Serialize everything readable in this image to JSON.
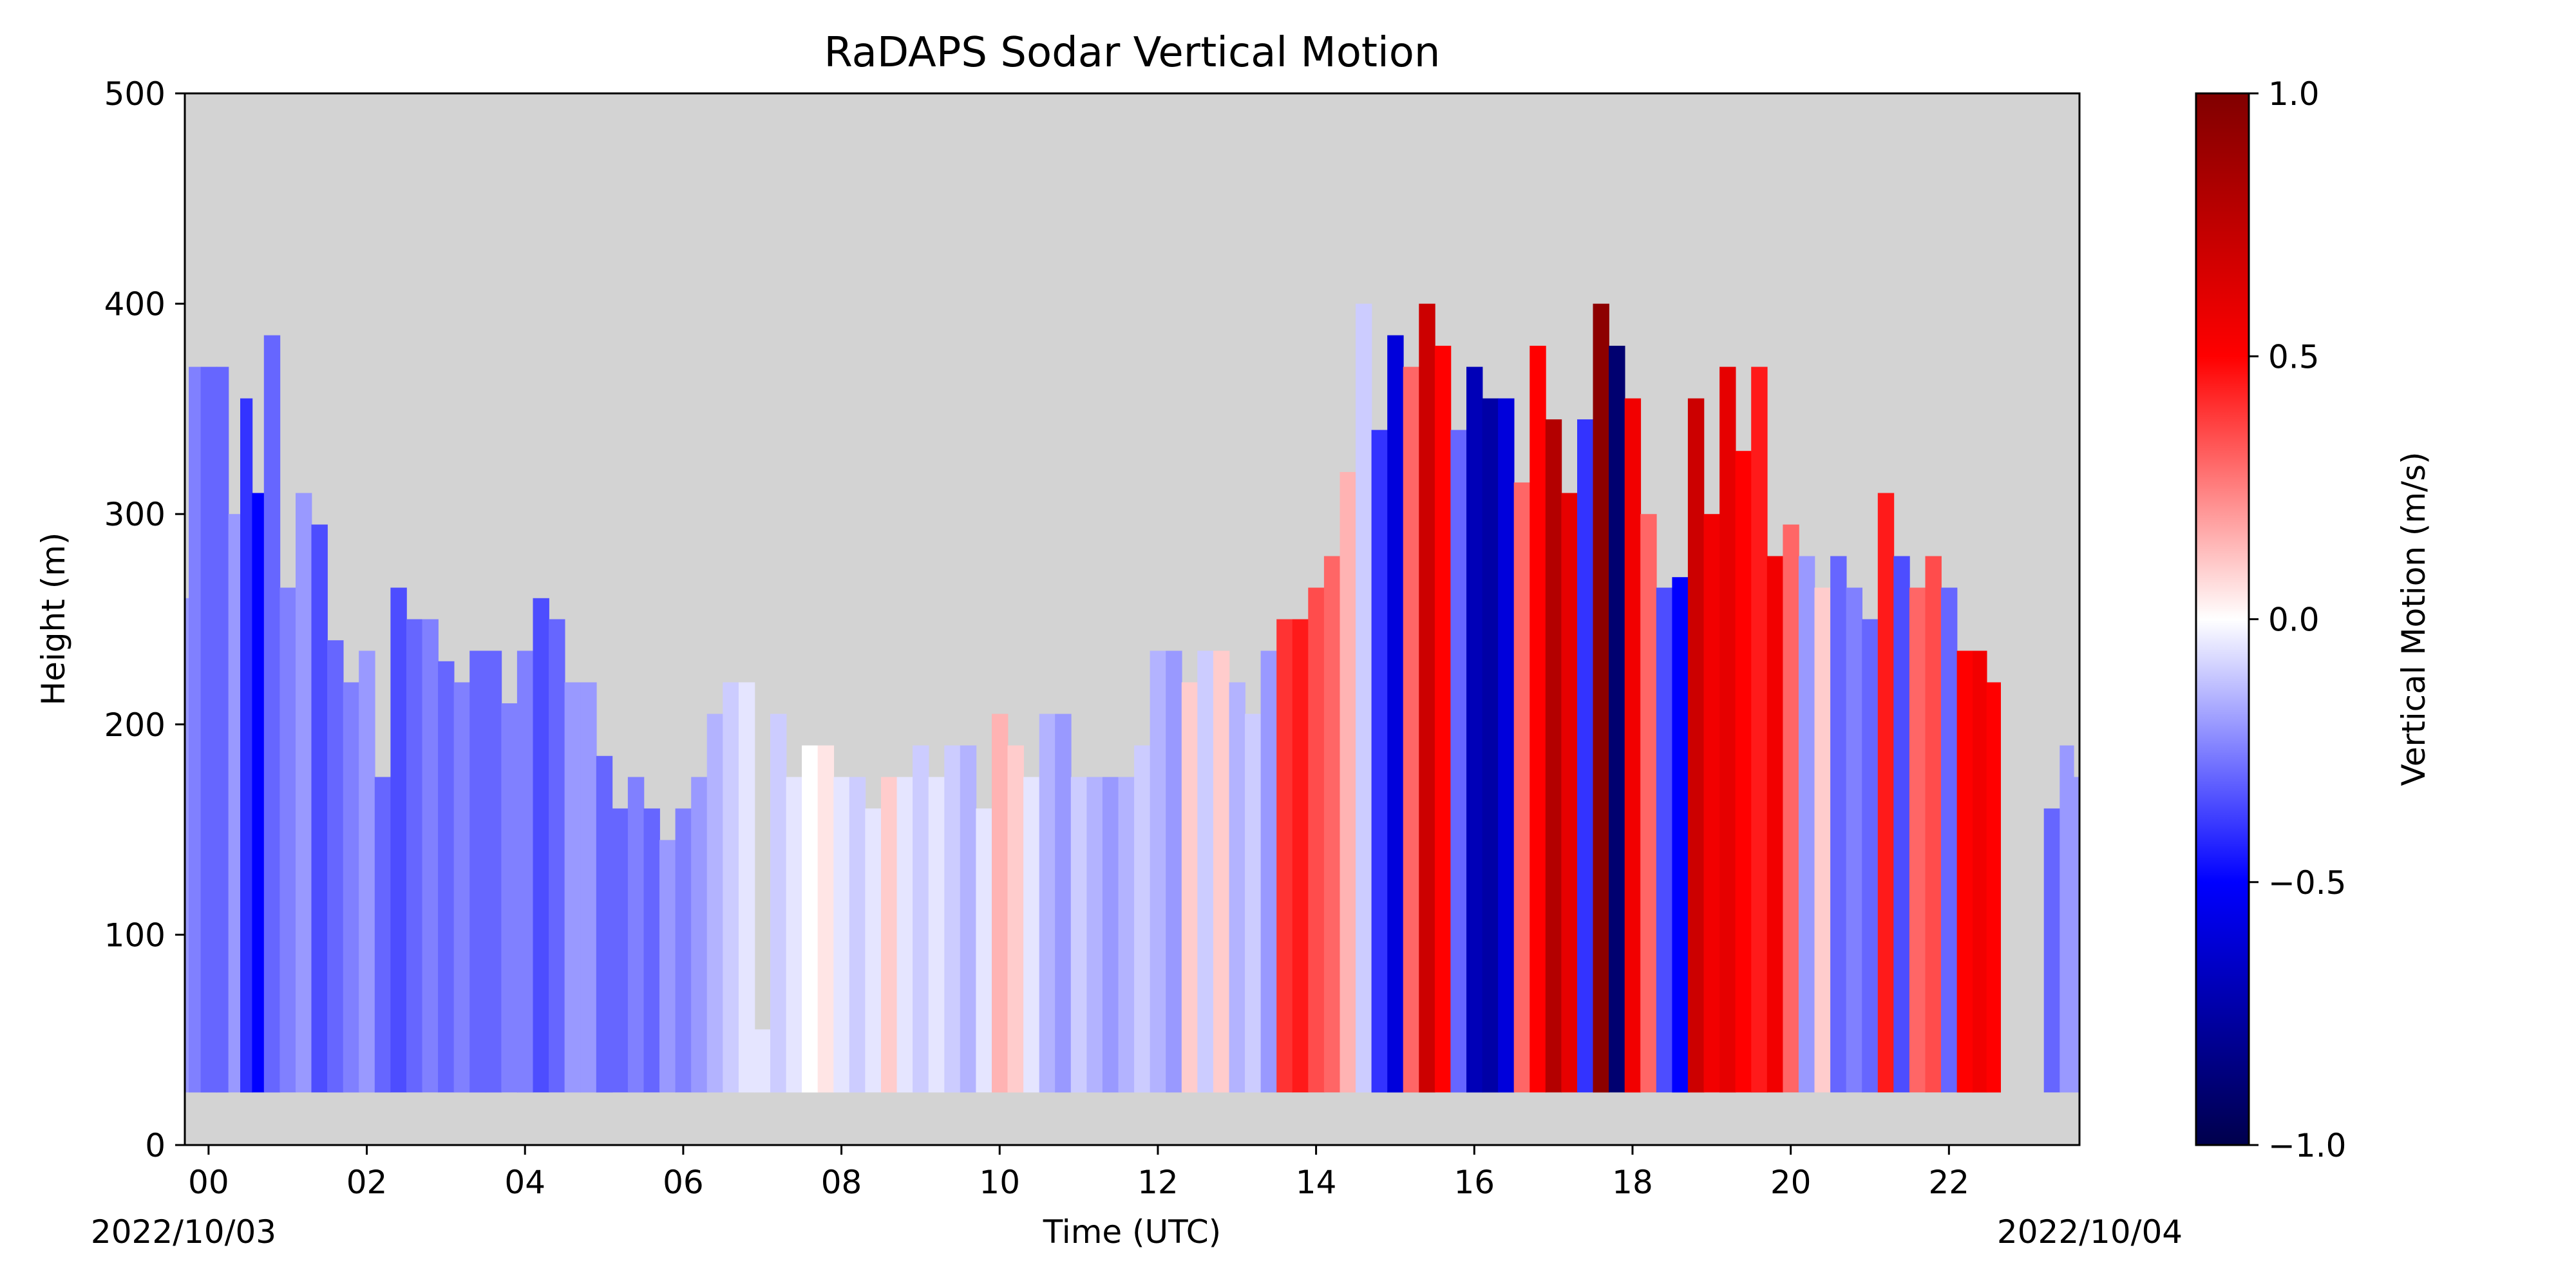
{
  "chart_data": {
    "type": "heatmap",
    "title": "RaDAPS Sodar Vertical Motion",
    "xlabel": "Time (UTC)",
    "ylabel": "Height (m)",
    "x_unit": "hour UTC",
    "xlim": [
      -0.3,
      23.65
    ],
    "ylim": [
      0,
      500
    ],
    "xticks": [
      0,
      2,
      4,
      6,
      8,
      10,
      12,
      14,
      16,
      18,
      20,
      22
    ],
    "xtick_labels": [
      "00",
      "02",
      "04",
      "06",
      "08",
      "10",
      "12",
      "14",
      "16",
      "18",
      "20",
      "22"
    ],
    "yticks": [
      0,
      100,
      200,
      300,
      400,
      500
    ],
    "ytick_labels": [
      "0",
      "100",
      "200",
      "300",
      "400",
      "500"
    ],
    "date_start": "2022/10/03",
    "date_end": "2022/10/04",
    "background_color": "#d3d3d3",
    "min_height": 25,
    "colorbar": {
      "label": "Vertical Motion (m/s)",
      "vmin": -1.0,
      "vmax": 1.0,
      "ticks": [
        1.0,
        0.5,
        0.0,
        -0.5,
        -1.0
      ],
      "tick_labels": [
        "1.0",
        "0.5",
        "0.0",
        "−0.5",
        "−1.0"
      ],
      "colormap": "seismic",
      "colormap_stops": [
        "#00004c",
        "#0000ff",
        "#ffffff",
        "#ff0000",
        "#800000"
      ]
    },
    "columns": [
      {
        "t": -0.3,
        "top": 260,
        "w": -0.2
      },
      {
        "t": -0.2,
        "top": 370,
        "w": -0.25
      },
      {
        "t": 0.0,
        "top": 370,
        "w": -0.3
      },
      {
        "t": 0.2,
        "top": 370,
        "w": -0.3
      },
      {
        "t": 0.3,
        "top": 300,
        "w": -0.2
      },
      {
        "t": 0.5,
        "top": 355,
        "w": -0.4
      },
      {
        "t": 0.6,
        "top": 310,
        "w": -0.5
      },
      {
        "t": 0.8,
        "top": 385,
        "w": -0.3
      },
      {
        "t": 1.0,
        "top": 265,
        "w": -0.25
      },
      {
        "t": 1.2,
        "top": 310,
        "w": -0.2
      },
      {
        "t": 1.4,
        "top": 295,
        "w": -0.35
      },
      {
        "t": 1.6,
        "top": 240,
        "w": -0.3
      },
      {
        "t": 1.8,
        "top": 220,
        "w": -0.25
      },
      {
        "t": 2.0,
        "top": 235,
        "w": -0.2
      },
      {
        "t": 2.2,
        "top": 175,
        "w": -0.3
      },
      {
        "t": 2.4,
        "top": 265,
        "w": -0.35
      },
      {
        "t": 2.6,
        "top": 250,
        "w": -0.3
      },
      {
        "t": 2.8,
        "top": 250,
        "w": -0.25
      },
      {
        "t": 3.0,
        "top": 230,
        "w": -0.3
      },
      {
        "t": 3.2,
        "top": 220,
        "w": -0.25
      },
      {
        "t": 3.4,
        "top": 235,
        "w": -0.3
      },
      {
        "t": 3.6,
        "top": 235,
        "w": -0.3
      },
      {
        "t": 3.8,
        "top": 210,
        "w": -0.25
      },
      {
        "t": 4.0,
        "top": 235,
        "w": -0.25
      },
      {
        "t": 4.2,
        "top": 260,
        "w": -0.35
      },
      {
        "t": 4.4,
        "top": 250,
        "w": -0.3
      },
      {
        "t": 4.6,
        "top": 220,
        "w": -0.2
      },
      {
        "t": 4.8,
        "top": 220,
        "w": -0.2
      },
      {
        "t": 5.0,
        "top": 185,
        "w": -0.3
      },
      {
        "t": 5.2,
        "top": 160,
        "w": -0.3
      },
      {
        "t": 5.4,
        "top": 175,
        "w": -0.25
      },
      {
        "t": 5.6,
        "top": 160,
        "w": -0.3
      },
      {
        "t": 5.8,
        "top": 145,
        "w": -0.2
      },
      {
        "t": 6.0,
        "top": 160,
        "w": -0.25
      },
      {
        "t": 6.2,
        "top": 175,
        "w": -0.2
      },
      {
        "t": 6.4,
        "top": 205,
        "w": -0.15
      },
      {
        "t": 6.6,
        "top": 220,
        "w": -0.1
      },
      {
        "t": 6.8,
        "top": 220,
        "w": -0.05
      },
      {
        "t": 7.0,
        "top": 55,
        "w": -0.05
      },
      {
        "t": 7.2,
        "top": 205,
        "w": -0.1
      },
      {
        "t": 7.4,
        "top": 175,
        "w": -0.05
      },
      {
        "t": 7.6,
        "top": 190,
        "w": 0.0
      },
      {
        "t": 7.8,
        "top": 190,
        "w": 0.05
      },
      {
        "t": 8.0,
        "top": 175,
        "w": -0.05
      },
      {
        "t": 8.2,
        "top": 175,
        "w": -0.1
      },
      {
        "t": 8.4,
        "top": 160,
        "w": -0.05
      },
      {
        "t": 8.6,
        "top": 175,
        "w": 0.1
      },
      {
        "t": 8.8,
        "top": 175,
        "w": -0.05
      },
      {
        "t": 9.0,
        "top": 190,
        "w": -0.1
      },
      {
        "t": 9.2,
        "top": 175,
        "w": -0.05
      },
      {
        "t": 9.4,
        "top": 190,
        "w": -0.1
      },
      {
        "t": 9.6,
        "top": 190,
        "w": -0.15
      },
      {
        "t": 9.8,
        "top": 160,
        "w": -0.05
      },
      {
        "t": 10.0,
        "top": 205,
        "w": 0.15
      },
      {
        "t": 10.2,
        "top": 190,
        "w": 0.1
      },
      {
        "t": 10.4,
        "top": 175,
        "w": -0.05
      },
      {
        "t": 10.6,
        "top": 205,
        "w": -0.15
      },
      {
        "t": 10.8,
        "top": 205,
        "w": -0.2
      },
      {
        "t": 11.0,
        "top": 175,
        "w": -0.1
      },
      {
        "t": 11.2,
        "top": 175,
        "w": -0.15
      },
      {
        "t": 11.4,
        "top": 175,
        "w": -0.2
      },
      {
        "t": 11.6,
        "top": 175,
        "w": -0.15
      },
      {
        "t": 11.8,
        "top": 190,
        "w": -0.1
      },
      {
        "t": 12.0,
        "top": 235,
        "w": -0.15
      },
      {
        "t": 12.2,
        "top": 235,
        "w": -0.2
      },
      {
        "t": 12.4,
        "top": 220,
        "w": 0.1
      },
      {
        "t": 12.6,
        "top": 235,
        "w": -0.1
      },
      {
        "t": 12.8,
        "top": 235,
        "w": 0.1
      },
      {
        "t": 13.0,
        "top": 220,
        "w": -0.15
      },
      {
        "t": 13.2,
        "top": 205,
        "w": -0.1
      },
      {
        "t": 13.4,
        "top": 235,
        "w": -0.2
      },
      {
        "t": 13.6,
        "top": 250,
        "w": 0.4
      },
      {
        "t": 13.8,
        "top": 250,
        "w": 0.45
      },
      {
        "t": 14.0,
        "top": 265,
        "w": 0.35
      },
      {
        "t": 14.2,
        "top": 280,
        "w": 0.3
      },
      {
        "t": 14.4,
        "top": 320,
        "w": 0.15
      },
      {
        "t": 14.6,
        "top": 400,
        "w": -0.1
      },
      {
        "t": 14.8,
        "top": 340,
        "w": -0.4
      },
      {
        "t": 15.0,
        "top": 385,
        "w": -0.6
      },
      {
        "t": 15.2,
        "top": 370,
        "w": 0.3
      },
      {
        "t": 15.4,
        "top": 400,
        "w": 0.7
      },
      {
        "t": 15.6,
        "top": 380,
        "w": 0.5
      },
      {
        "t": 15.8,
        "top": 340,
        "w": -0.3
      },
      {
        "t": 16.0,
        "top": 370,
        "w": -0.7
      },
      {
        "t": 16.2,
        "top": 355,
        "w": -0.75
      },
      {
        "t": 16.4,
        "top": 355,
        "w": -0.6
      },
      {
        "t": 16.6,
        "top": 315,
        "w": 0.3
      },
      {
        "t": 16.8,
        "top": 380,
        "w": 0.5
      },
      {
        "t": 17.0,
        "top": 345,
        "w": 0.8
      },
      {
        "t": 17.2,
        "top": 310,
        "w": 0.6
      },
      {
        "t": 17.4,
        "top": 345,
        "w": -0.4
      },
      {
        "t": 17.6,
        "top": 400,
        "w": 0.95
      },
      {
        "t": 17.8,
        "top": 380,
        "w": -0.9
      },
      {
        "t": 18.0,
        "top": 355,
        "w": 0.55
      },
      {
        "t": 18.2,
        "top": 300,
        "w": 0.3
      },
      {
        "t": 18.4,
        "top": 265,
        "w": -0.35
      },
      {
        "t": 18.6,
        "top": 270,
        "w": -0.5
      },
      {
        "t": 18.8,
        "top": 355,
        "w": 0.7
      },
      {
        "t": 19.0,
        "top": 300,
        "w": 0.55
      },
      {
        "t": 19.2,
        "top": 370,
        "w": 0.6
      },
      {
        "t": 19.4,
        "top": 330,
        "w": 0.5
      },
      {
        "t": 19.6,
        "top": 370,
        "w": 0.45
      },
      {
        "t": 19.8,
        "top": 280,
        "w": 0.55
      },
      {
        "t": 20.0,
        "top": 295,
        "w": 0.3
      },
      {
        "t": 20.2,
        "top": 280,
        "w": -0.2
      },
      {
        "t": 20.4,
        "top": 265,
        "w": 0.1
      },
      {
        "t": 20.6,
        "top": 280,
        "w": -0.3
      },
      {
        "t": 20.8,
        "top": 265,
        "w": -0.25
      },
      {
        "t": 21.0,
        "top": 250,
        "w": -0.3
      },
      {
        "t": 21.2,
        "top": 310,
        "w": 0.45
      },
      {
        "t": 21.4,
        "top": 280,
        "w": -0.35
      },
      {
        "t": 21.6,
        "top": 265,
        "w": 0.3
      },
      {
        "t": 21.8,
        "top": 280,
        "w": 0.35
      },
      {
        "t": 22.0,
        "top": 265,
        "w": -0.3
      },
      {
        "t": 22.2,
        "top": 235,
        "w": 0.5
      },
      {
        "t": 22.4,
        "top": 235,
        "w": 0.55
      },
      {
        "t": 22.55,
        "top": 220,
        "w": 0.5
      },
      {
        "t": 23.3,
        "top": 160,
        "w": -0.3
      },
      {
        "t": 23.5,
        "top": 190,
        "w": -0.2
      },
      {
        "t": 23.65,
        "top": 175,
        "w": -0.2
      }
    ],
    "gaps": [
      [
        22.65,
        23.2
      ]
    ]
  }
}
